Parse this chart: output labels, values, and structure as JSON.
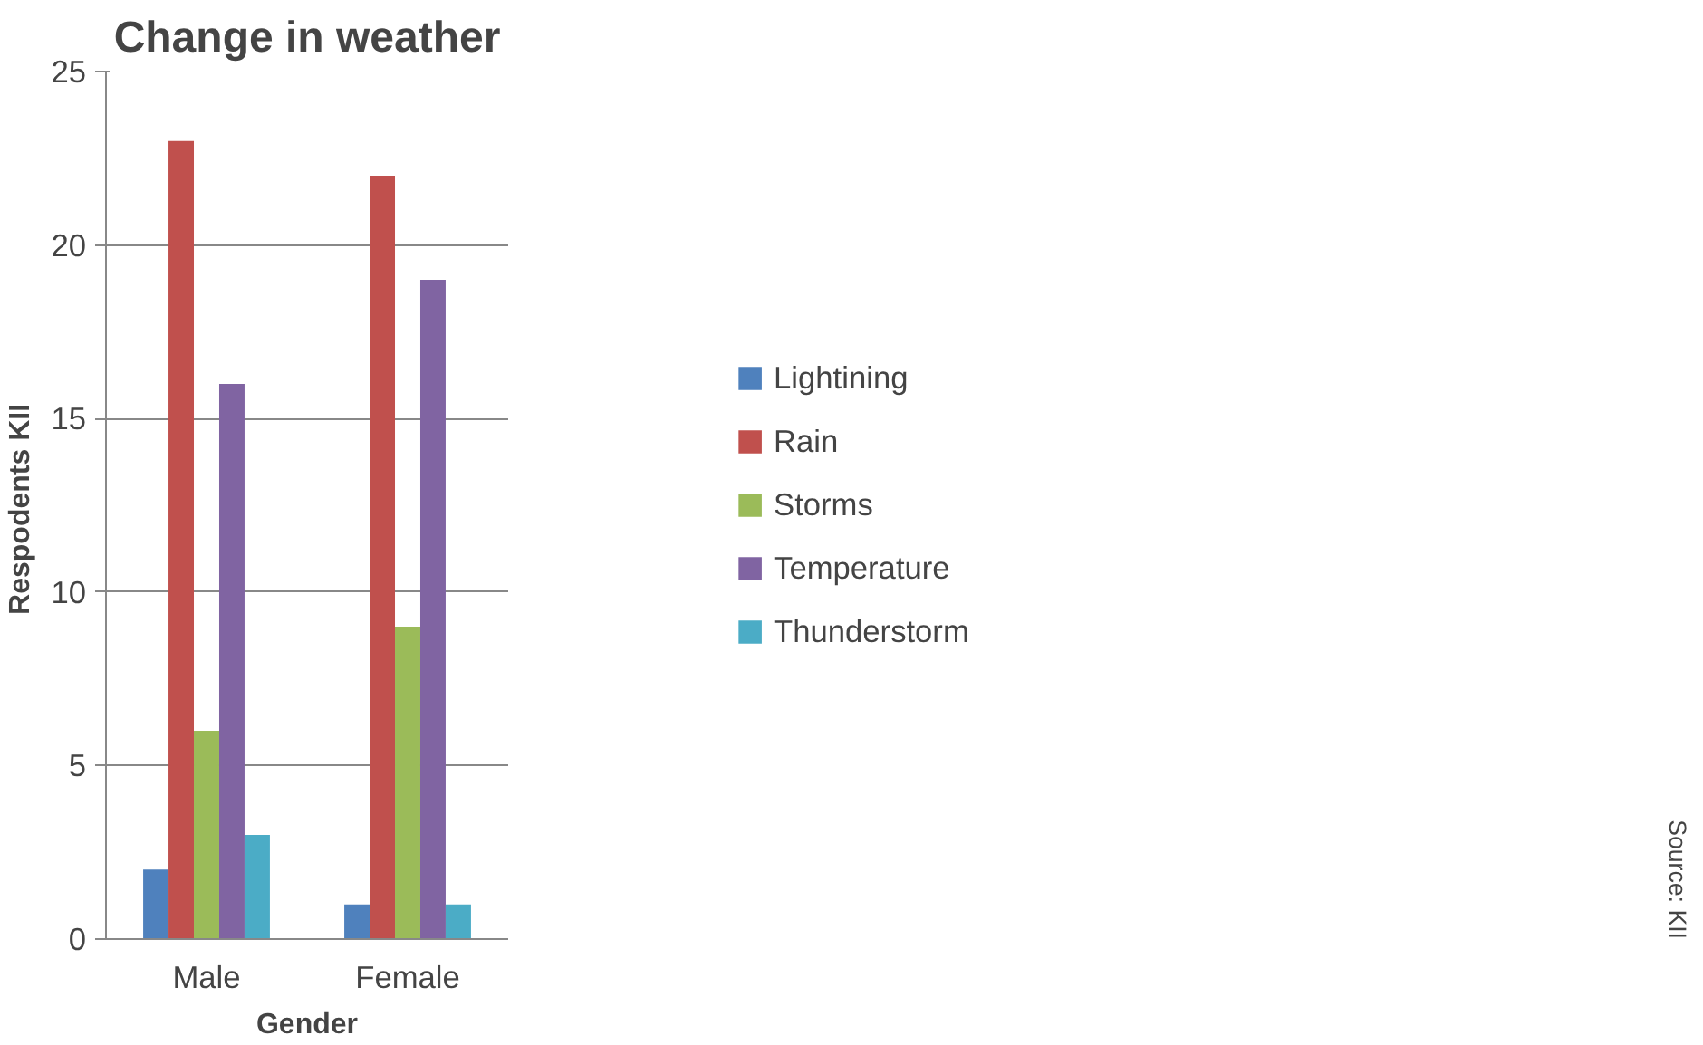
{
  "chart_data": {
    "type": "bar",
    "title": "Change in weather",
    "xlabel": "Gender",
    "ylabel": "Respodents  KII",
    "categories": [
      "Male",
      "Female"
    ],
    "series": [
      {
        "name": "Lightining",
        "color": "#4f81bd",
        "values": [
          2,
          1
        ]
      },
      {
        "name": "Rain",
        "color": "#c0504d",
        "values": [
          23,
          22
        ]
      },
      {
        "name": "Storms",
        "color": "#9bbb59",
        "values": [
          6,
          9
        ]
      },
      {
        "name": "Temperature",
        "color": "#8064a2",
        "values": [
          16,
          19
        ]
      },
      {
        "name": "Thunderstorm",
        "color": "#4bacc6",
        "values": [
          3,
          1
        ]
      }
    ],
    "ylim": [
      0,
      25
    ],
    "yticks": [
      0,
      5,
      10,
      15,
      20,
      25
    ],
    "grid": "y",
    "legend": "right",
    "annotations": [
      "Source: KII"
    ]
  }
}
